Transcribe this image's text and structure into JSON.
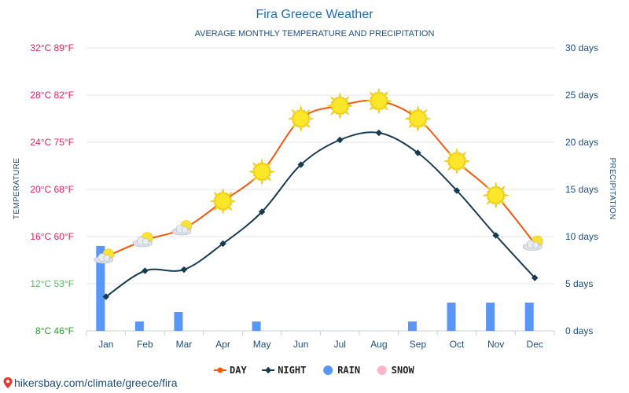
{
  "chart_data": {
    "type": "line",
    "title": "Fira Greece Weather",
    "subtitle": "AVERAGE MONTHLY TEMPERATURE AND PRECIPITATION",
    "ylabel": "TEMPERATURE",
    "y2label": "PRECIPITATION",
    "categories": [
      "Jan",
      "Feb",
      "Mar",
      "Apr",
      "May",
      "Jun",
      "Jul",
      "Aug",
      "Sep",
      "Oct",
      "Nov",
      "Dec"
    ],
    "ylim": [
      8,
      32
    ],
    "y2lim": [
      0,
      30
    ],
    "y_ticks": [
      "8°C 46°F",
      "12°C 53°F",
      "16°C 60°F",
      "20°C 68°F",
      "24°C 75°F",
      "28°C 82°F",
      "32°C 89°F"
    ],
    "y_tick_colors": [
      "#2e9b2e",
      "#5cb85c",
      "#e0245e",
      "#e0245e",
      "#e0245e",
      "#e0245e",
      "#e0245e"
    ],
    "y2_ticks": [
      "0 days",
      "5 days",
      "10 days",
      "15 days",
      "20 days",
      "25 days",
      "30 days"
    ],
    "series": [
      {
        "name": "DAY",
        "type": "line",
        "color": "#f05a0f",
        "values": [
          14.3,
          15.7,
          16.7,
          19.0,
          21.5,
          26.0,
          27.1,
          27.5,
          26.0,
          22.4,
          19.5,
          15.4
        ],
        "icons": [
          "cloud-sun-icon",
          "cloud-sun-icon",
          "cloud-sun-icon",
          "sun-icon",
          "sun-icon",
          "sun-icon",
          "sun-icon",
          "sun-icon",
          "sun-icon",
          "sun-icon",
          "sun-icon",
          "cloud-sun-icon"
        ]
      },
      {
        "name": "NIGHT",
        "type": "line",
        "color": "#173b4f",
        "values": [
          10.9,
          13.1,
          13.2,
          15.4,
          18.1,
          22.1,
          24.2,
          24.8,
          23.1,
          19.9,
          16.1,
          12.5
        ]
      },
      {
        "name": "RAIN",
        "type": "bar",
        "axis": "right",
        "color": "#5a96f5",
        "values": [
          9,
          1,
          2,
          0,
          1,
          0,
          0,
          0,
          1,
          3,
          3,
          3
        ]
      },
      {
        "name": "SNOW",
        "type": "bar",
        "axis": "right",
        "color": "#ffb6c8",
        "values": [
          0,
          0,
          0,
          0,
          0,
          0,
          0,
          0,
          0,
          0,
          0,
          0
        ]
      }
    ],
    "grid": true,
    "legend": "bottom-center"
  },
  "legend": [
    {
      "label": "DAY",
      "color": "#f05a0f",
      "marker": "line"
    },
    {
      "label": "NIGHT",
      "color": "#173b4f",
      "marker": "line"
    },
    {
      "label": "RAIN",
      "color": "#5a96f5",
      "marker": "dot"
    },
    {
      "label": "SNOW",
      "color": "#ffb6c8",
      "marker": "dot"
    }
  ],
  "footer": {
    "text": "hikersbay.com/climate/greece/fira",
    "icon": "location-pin-icon",
    "color": "#e03c31"
  }
}
